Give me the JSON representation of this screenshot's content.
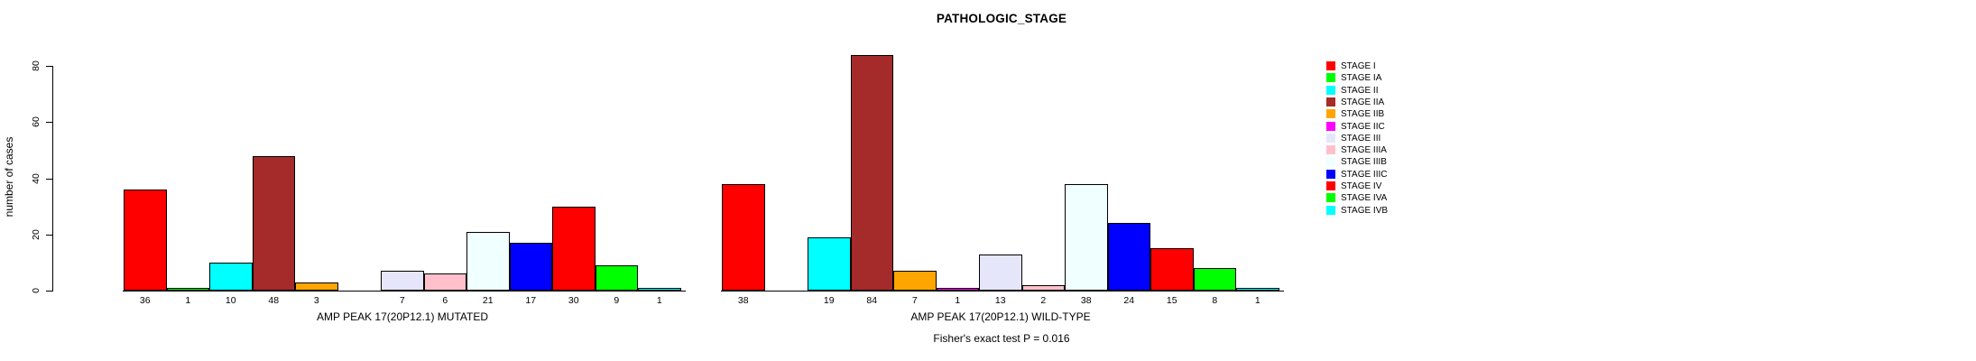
{
  "chart_data": {
    "type": "bar",
    "title": "PATHOLOGIC_STAGE",
    "ylabel": "number of cases",
    "xlabel": "",
    "ylim": [
      0,
      80
    ],
    "yticks": [
      0,
      20,
      40,
      60,
      80
    ],
    "grid": false,
    "legend_position": "right",
    "categories": [
      "STAGE I",
      "STAGE IA",
      "STAGE II",
      "STAGE IIA",
      "STAGE IIB",
      "STAGE IIC",
      "STAGE III",
      "STAGE IIIA",
      "STAGE IIIB",
      "STAGE IIIC",
      "STAGE IV",
      "STAGE IVA",
      "STAGE IVB"
    ],
    "colors": [
      "#FF0000",
      "#00FF00",
      "#00FFFF",
      "#A52A2A",
      "#FFA500",
      "#FF00FF",
      "#E6E6FA",
      "#FFC0CB",
      "#F0FFFF",
      "#0000FF",
      "#FF0000",
      "#00FF00",
      "#00FFFF"
    ],
    "series": [
      {
        "name": "AMP PEAK 17(20P12.1) MUTATED",
        "values": [
          36,
          1,
          10,
          48,
          3,
          0,
          7,
          6,
          21,
          17,
          30,
          9,
          1
        ]
      },
      {
        "name": "AMP PEAK 17(20P12.1) WILD-TYPE",
        "values": [
          38,
          0,
          19,
          84,
          7,
          1,
          13,
          2,
          38,
          24,
          15,
          8,
          1
        ]
      }
    ],
    "bar_value_labels_shown": true,
    "zero_value_labels_hidden": true,
    "footnote": "Fisher's exact test P = 0.016",
    "legend": {
      "entries": [
        {
          "label": "STAGE I",
          "color": "#FF0000"
        },
        {
          "label": "STAGE IA",
          "color": "#00FF00"
        },
        {
          "label": "STAGE II",
          "color": "#00FFFF"
        },
        {
          "label": "STAGE IIA",
          "color": "#A52A2A"
        },
        {
          "label": "STAGE IIB",
          "color": "#FFA500"
        },
        {
          "label": "STAGE IIC",
          "color": "#FF00FF"
        },
        {
          "label": "STAGE III",
          "color": "#E6E6FA"
        },
        {
          "label": "STAGE IIIA",
          "color": "#FFC0CB"
        },
        {
          "label": "STAGE IIIB",
          "color": "#F0FFFF"
        },
        {
          "label": "STAGE IIIC",
          "color": "#0000FF"
        },
        {
          "label": "STAGE IV",
          "color": "#FF0000"
        },
        {
          "label": "STAGE IVA",
          "color": "#00FF00"
        },
        {
          "label": "STAGE IVB",
          "color": "#00FFFF"
        }
      ]
    }
  }
}
